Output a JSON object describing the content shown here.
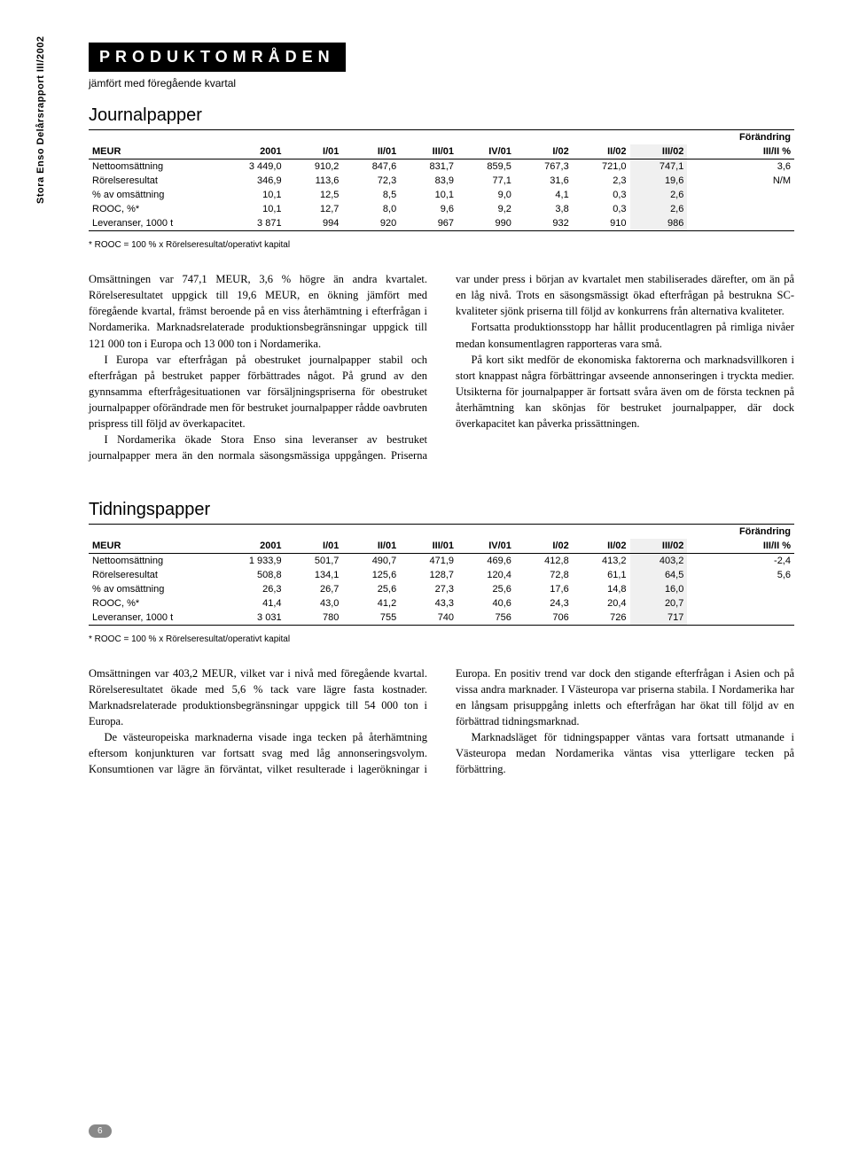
{
  "sidebar_text": "Stora Enso Delårsrapport III/2002",
  "header": {
    "title": "PRODUKTOMRÅDEN",
    "subtitle": "jämfört med föregående kvartal"
  },
  "t1": {
    "title": "Journalpapper",
    "change_label": "Förändring",
    "columns": [
      "MEUR",
      "2001",
      "I/01",
      "II/01",
      "III/01",
      "IV/01",
      "I/02",
      "II/02",
      "III/02",
      "III/II %"
    ],
    "rows": [
      [
        "Nettoomsättning",
        "3 449,0",
        "910,2",
        "847,6",
        "831,7",
        "859,5",
        "767,3",
        "721,0",
        "747,1",
        "3,6"
      ],
      [
        "Rörelseresultat",
        "346,9",
        "113,6",
        "72,3",
        "83,9",
        "77,1",
        "31,6",
        "2,3",
        "19,6",
        "N/M"
      ],
      [
        "  % av omsättning",
        "10,1",
        "12,5",
        "8,5",
        "10,1",
        "9,0",
        "4,1",
        "0,3",
        "2,6",
        ""
      ],
      [
        "ROOC, %*",
        "10,1",
        "12,7",
        "8,0",
        "9,6",
        "9,2",
        "3,8",
        "0,3",
        "2,6",
        ""
      ],
      [
        "Leveranser, 1000 t",
        "3 871",
        "994",
        "920",
        "967",
        "990",
        "932",
        "910",
        "986",
        ""
      ]
    ],
    "footnote": "* ROOC = 100 % x Rörelseresultat/operativt kapital",
    "highlight_col": 8,
    "body": [
      "Omsättningen var 747,1 MEUR, 3,6 % högre än andra kvartalet. Rörelseresultatet uppgick till 19,6 MEUR, en ökning jämfört med föregående kvartal, främst beroende på en viss återhämtning i efterfrågan i Nordamerika. Marknadsrelaterade produktionsbegränsningar uppgick till 121 000 ton i Europa och 13 000 ton i Nordamerika.",
      "I Europa var efterfrågan på obestruket journalpapper stabil och efterfrågan på bestruket papper förbättrades något. På grund av den gynnsamma efterfrågesituationen var försäljningspriserna för obestruket journalpapper oförändrade men för bestruket journalpapper rådde oavbruten prispress till följd av överkapacitet.",
      "I Nordamerika ökade Stora Enso sina leveranser av bestruket journalpapper mera än den normala säsongsmässiga uppgången. Priserna var under press i början av kvartalet men stabiliserades därefter, om än på en låg nivå. Trots en säsongsmässigt ökad efterfrågan på bestrukna SC-kvaliteter sjönk priserna till följd av konkurrens från alternativa kvaliteter.",
      "Fortsatta produktionsstopp har hållit producentlagren på rimliga nivåer medan konsumentlagren rapporteras vara små.",
      "På kort sikt medför de ekonomiska faktorerna och marknadsvillkoren i stort knappast några förbättringar avseende annonseringen i tryckta medier. Utsikterna för journalpapper är fortsatt svåra även om de första tecknen på återhämtning kan skönjas för bestruket journalpapper, där dock överkapacitet kan påverka prissättningen."
    ]
  },
  "t2": {
    "title": "Tidningspapper",
    "change_label": "Förändring",
    "columns": [
      "MEUR",
      "2001",
      "I/01",
      "II/01",
      "III/01",
      "IV/01",
      "I/02",
      "II/02",
      "III/02",
      "III/II %"
    ],
    "rows": [
      [
        "Nettoomsättning",
        "1 933,9",
        "501,7",
        "490,7",
        "471,9",
        "469,6",
        "412,8",
        "413,2",
        "403,2",
        "-2,4"
      ],
      [
        "Rörelseresultat",
        "508,8",
        "134,1",
        "125,6",
        "128,7",
        "120,4",
        "72,8",
        "61,1",
        "64,5",
        "5,6"
      ],
      [
        "  % av omsättning",
        "26,3",
        "26,7",
        "25,6",
        "27,3",
        "25,6",
        "17,6",
        "14,8",
        "16,0",
        ""
      ],
      [
        "ROOC, %*",
        "41,4",
        "43,0",
        "41,2",
        "43,3",
        "40,6",
        "24,3",
        "20,4",
        "20,7",
        ""
      ],
      [
        "Leveranser, 1000 t",
        "3 031",
        "780",
        "755",
        "740",
        "756",
        "706",
        "726",
        "717",
        ""
      ]
    ],
    "footnote": "* ROOC = 100 % x Rörelseresultat/operativt kapital",
    "highlight_col": 8,
    "body": [
      "Omsättningen var 403,2 MEUR, vilket var i nivå med föregående kvartal. Rörelseresultatet ökade med 5,6 % tack vare lägre fasta kostnader. Marknadsrelaterade produktionsbegränsningar uppgick till 54 000 ton i Europa.",
      "De västeuropeiska marknaderna visade inga tecken på återhämtning eftersom konjunkturen var fortsatt svag med låg annonseringsvolym. Konsumtionen var lägre än förväntat, vilket resulterade i lagerökningar i Europa. En positiv trend var dock den stigande efterfrågan i Asien och på vissa andra marknader. I Västeuropa var priserna stabila. I Nordamerika har en långsam prisuppgång inletts och efterfrågan har ökat till följd av en förbättrad tidningsmarknad.",
      "Marknadsläget för tidningspapper väntas vara fortsatt utmanande i Västeuropa medan Nordamerika väntas visa ytterligare tecken på förbättring."
    ]
  },
  "page_number": "6"
}
